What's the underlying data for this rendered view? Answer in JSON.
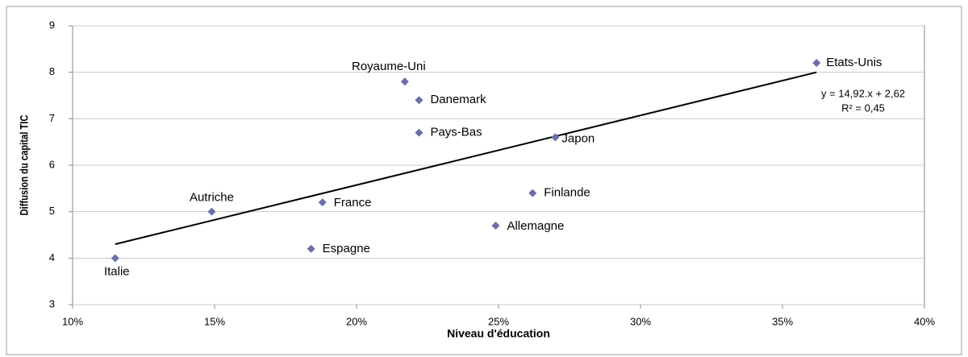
{
  "chart_data": {
    "type": "scatter",
    "x_label": "Niveau d'éducation",
    "y_label": "Diffusion du capital TIC",
    "series": [
      {
        "color": "#6b6fa8",
        "names": [
          "Etats-Unis",
          "Royaume-Uni",
          "Danemark",
          "Pays-Bas",
          "Japon",
          "Finlande",
          "Allemagne",
          "France",
          "Espagne",
          "Autriche",
          "Italie"
        ],
        "x": [
          36.2,
          21.7,
          22.2,
          22.2,
          27.0,
          26.2,
          24.9,
          18.8,
          18.4,
          14.9,
          11.5
        ],
        "values": [
          8.2,
          7.8,
          7.4,
          6.7,
          6.6,
          5.4,
          4.7,
          5.2,
          4.2,
          5.0,
          4.0
        ]
      }
    ],
    "trendline": {
      "x": [
        11.5,
        36.2
      ],
      "y": [
        4.3,
        8.0
      ],
      "color": "#000000",
      "equation": "y = 14,92.x + 2,62",
      "r2": "R² = 0,45"
    },
    "xlim": [
      10,
      40
    ],
    "xticks": [
      {
        "value": 10,
        "label": "10%"
      },
      {
        "value": 15,
        "label": "15%"
      },
      {
        "value": 20,
        "label": "20%"
      },
      {
        "value": 25,
        "label": "25%"
      },
      {
        "value": 30,
        "label": "30%"
      },
      {
        "value": 35,
        "label": "35%"
      },
      {
        "value": 40,
        "label": "40%"
      }
    ],
    "ylim": [
      3,
      9
    ],
    "yticks": [
      3,
      4,
      5,
      6,
      7,
      8,
      9
    ],
    "grid": true
  }
}
